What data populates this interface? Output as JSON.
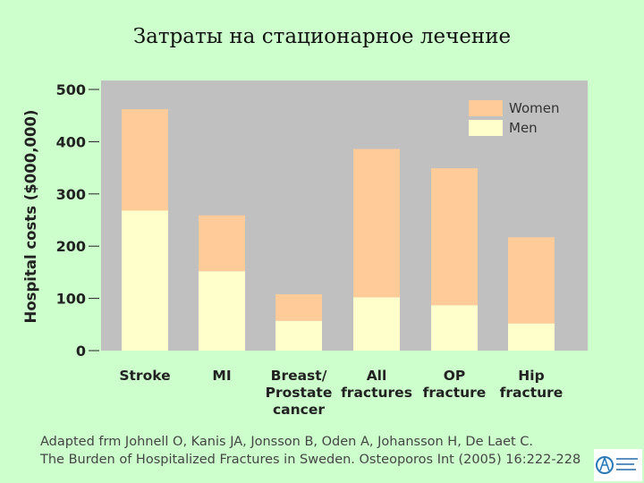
{
  "title": "Затраты на стационарное лечение",
  "chart_data": {
    "type": "bar",
    "stacked": true,
    "title": "",
    "ylabel": "Hospital costs ($000,000)",
    "xlabel": "",
    "ylim": [
      0,
      500
    ],
    "yticks": [
      "0",
      "100",
      "200",
      "300",
      "400",
      "500"
    ],
    "categories": [
      [
        "Stroke"
      ],
      [
        "MI"
      ],
      [
        "Breast/",
        "Prostate",
        "cancer"
      ],
      [
        "All",
        "fractures"
      ],
      [
        "OP",
        "fracture"
      ],
      [
        "Hip",
        "fracture"
      ]
    ],
    "series": [
      {
        "name": "Men",
        "color": "#ffffcc",
        "values": [
          268,
          152,
          57,
          102,
          87,
          52
        ]
      },
      {
        "name": "Women",
        "color": "#ffcc99",
        "values": [
          194,
          107,
          51,
          284,
          262,
          165
        ]
      }
    ],
    "legend_order": [
      "Women",
      "Men"
    ],
    "legend_position": "top-right",
    "plot_background": "#c0c0c0"
  },
  "caption": {
    "line1": "Adapted frm Johnell O, Kanis JA, Jonsson B, Oden A, Johansson H, De Laet C.",
    "line2": "The Burden of Hospitalized Fractures in Sweden. Osteoporos Int (2005) 16:222-228"
  }
}
